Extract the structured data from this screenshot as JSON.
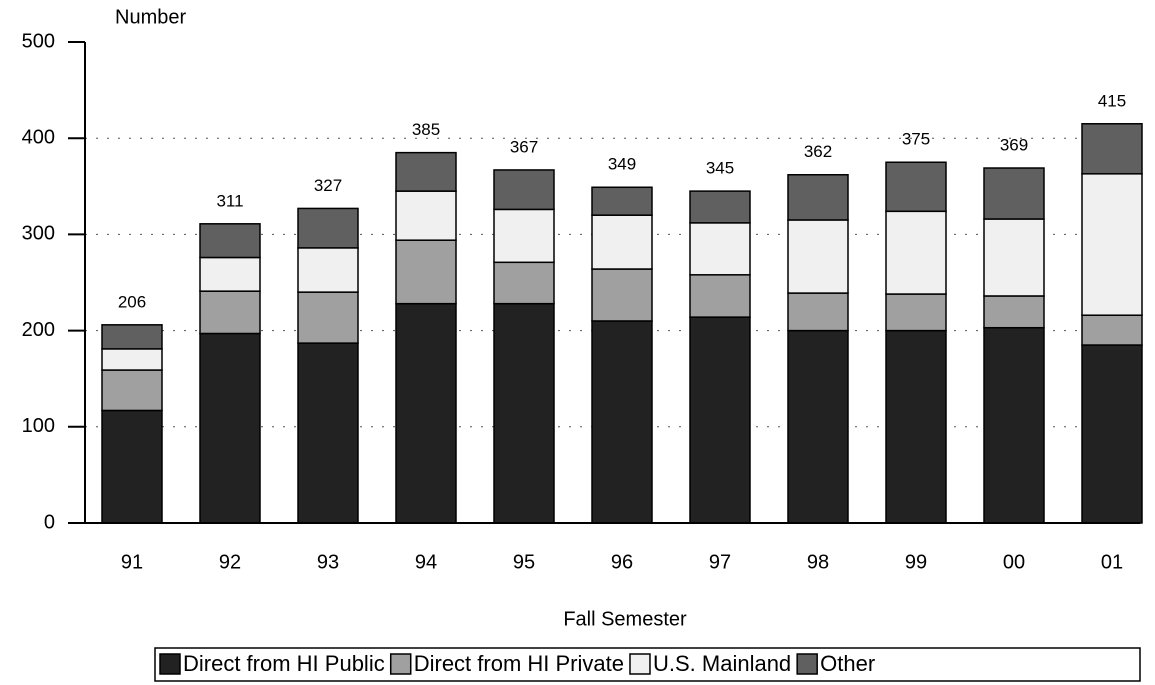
{
  "chart_data": {
    "type": "stacked_bar",
    "y_axis_label": "Number",
    "x_axis_label": "Fall Semester",
    "categories": [
      "91",
      "92",
      "93",
      "94",
      "95",
      "96",
      "97",
      "98",
      "99",
      "00",
      "01"
    ],
    "series": [
      {
        "name": "Direct from HI Public",
        "color": "#222222",
        "values": [
          117,
          197,
          187,
          228,
          228,
          210,
          214,
          200,
          200,
          203,
          185
        ]
      },
      {
        "name": "Direct from HI Private",
        "color": "#a0a0a0",
        "values": [
          42,
          44,
          53,
          66,
          43,
          54,
          44,
          39,
          38,
          33,
          31
        ]
      },
      {
        "name": "U.S. Mainland",
        "color": "#f0f0f0",
        "values": [
          22,
          35,
          46,
          51,
          55,
          56,
          54,
          76,
          86,
          80,
          147
        ]
      },
      {
        "name": "Other",
        "color": "#606060",
        "values": [
          25,
          35,
          41,
          40,
          41,
          29,
          33,
          47,
          51,
          53,
          52
        ]
      }
    ],
    "totals": [
      206,
      311,
      327,
      385,
      367,
      349,
      345,
      362,
      375,
      369,
      415
    ],
    "ylim": [
      0,
      500
    ],
    "yticks": [
      0,
      100,
      200,
      300,
      400,
      500
    ],
    "grid": true
  }
}
